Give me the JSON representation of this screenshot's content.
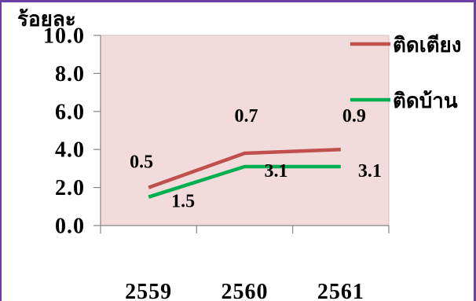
{
  "chart_data": {
    "type": "line",
    "stacked": true,
    "ylabel": "ร้อยละ",
    "categories": [
      "2559",
      "2560",
      "2561"
    ],
    "series": [
      {
        "name": "ติดเตียง",
        "values": [
          0.5,
          0.7,
          0.9
        ],
        "color": "#c0504d"
      },
      {
        "name": "ติดบ้าน",
        "values": [
          1.5,
          3.1,
          3.1
        ],
        "color": "#00b050"
      }
    ],
    "ylim": [
      0,
      10
    ],
    "yticks": [
      "0.0",
      "2.0",
      "4.0",
      "6.0",
      "8.0",
      "10.0"
    ],
    "data_labels": true,
    "grid": false,
    "legend": "right",
    "plot_background": "#f2dcdb"
  }
}
